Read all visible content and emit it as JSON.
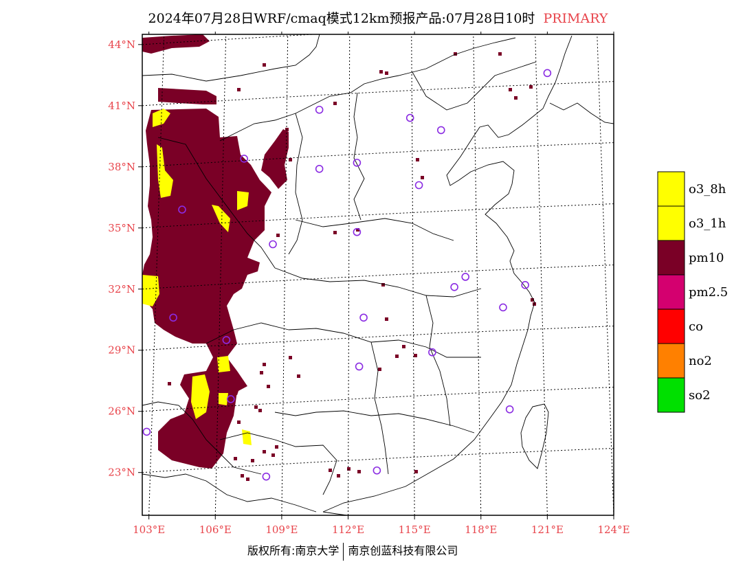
{
  "header": {
    "title": "2024年07月28日WRF/cmaq模式12km预报产品:07月28日10时",
    "tag": "PRIMARY",
    "tag_color": "#e8434a"
  },
  "footer": {
    "left": "版权所有:南京大学",
    "right": "南京创蓝科技有限公司"
  },
  "map": {
    "lon_range": [
      102.7,
      124
    ],
    "lat_range": [
      20.9,
      44.5
    ],
    "lon_ticks": [
      {
        "value": 103,
        "label": "103°E"
      },
      {
        "value": 106,
        "label": "106°E"
      },
      {
        "value": 109,
        "label": "109°E"
      },
      {
        "value": 112,
        "label": "112°E"
      },
      {
        "value": 115,
        "label": "115°E"
      },
      {
        "value": 118,
        "label": "118°E"
      },
      {
        "value": 121,
        "label": "121°E"
      },
      {
        "value": 124,
        "label": "124°E"
      }
    ],
    "lat_ticks": [
      {
        "value": 44,
        "label": "44°N"
      },
      {
        "value": 41,
        "label": "41°N"
      },
      {
        "value": 38,
        "label": "38°N"
      },
      {
        "value": 35,
        "label": "35°N"
      },
      {
        "value": 32,
        "label": "32°N"
      },
      {
        "value": 29,
        "label": "29°N"
      },
      {
        "value": 26,
        "label": "26°N"
      },
      {
        "value": 23,
        "label": "23°N"
      }
    ],
    "tick_color": "#e8434a",
    "pollutant_colors": {
      "pm10": "#7a0026",
      "o3": "#ffff00",
      "station": "#8a2be2"
    },
    "stations": [
      {
        "lon": 121.0,
        "lat": 42.6
      },
      {
        "lon": 110.7,
        "lat": 40.8
      },
      {
        "lon": 114.8,
        "lat": 40.4
      },
      {
        "lon": 116.2,
        "lat": 39.8
      },
      {
        "lon": 107.3,
        "lat": 38.4
      },
      {
        "lon": 110.7,
        "lat": 37.9
      },
      {
        "lon": 112.4,
        "lat": 38.2
      },
      {
        "lon": 115.2,
        "lat": 37.1
      },
      {
        "lon": 104.5,
        "lat": 35.9
      },
      {
        "lon": 112.4,
        "lat": 34.8
      },
      {
        "lon": 108.6,
        "lat": 34.2
      },
      {
        "lon": 117.3,
        "lat": 32.6
      },
      {
        "lon": 116.8,
        "lat": 32.1
      },
      {
        "lon": 120.0,
        "lat": 32.2
      },
      {
        "lon": 119.0,
        "lat": 31.1
      },
      {
        "lon": 112.7,
        "lat": 30.6
      },
      {
        "lon": 104.1,
        "lat": 30.6
      },
      {
        "lon": 106.5,
        "lat": 29.5
      },
      {
        "lon": 115.8,
        "lat": 28.9
      },
      {
        "lon": 112.5,
        "lat": 28.2
      },
      {
        "lon": 119.3,
        "lat": 26.1
      },
      {
        "lon": 106.7,
        "lat": 26.6
      },
      {
        "lon": 102.9,
        "lat": 25.0
      },
      {
        "lon": 108.3,
        "lat": 22.8
      },
      {
        "lon": 113.3,
        "lat": 23.1
      }
    ]
  },
  "legend": {
    "items": [
      {
        "label": "o3_8h",
        "color": "#ffff00"
      },
      {
        "label": "o3_1h",
        "color": "#ffff00"
      },
      {
        "label": "pm10",
        "color": "#7a0026"
      },
      {
        "label": "pm2.5",
        "color": "#d4006f"
      },
      {
        "label": "co",
        "color": "#ff0000"
      },
      {
        "label": "no2",
        "color": "#ff8000"
      },
      {
        "label": "so2",
        "color": "#00e000"
      }
    ]
  }
}
